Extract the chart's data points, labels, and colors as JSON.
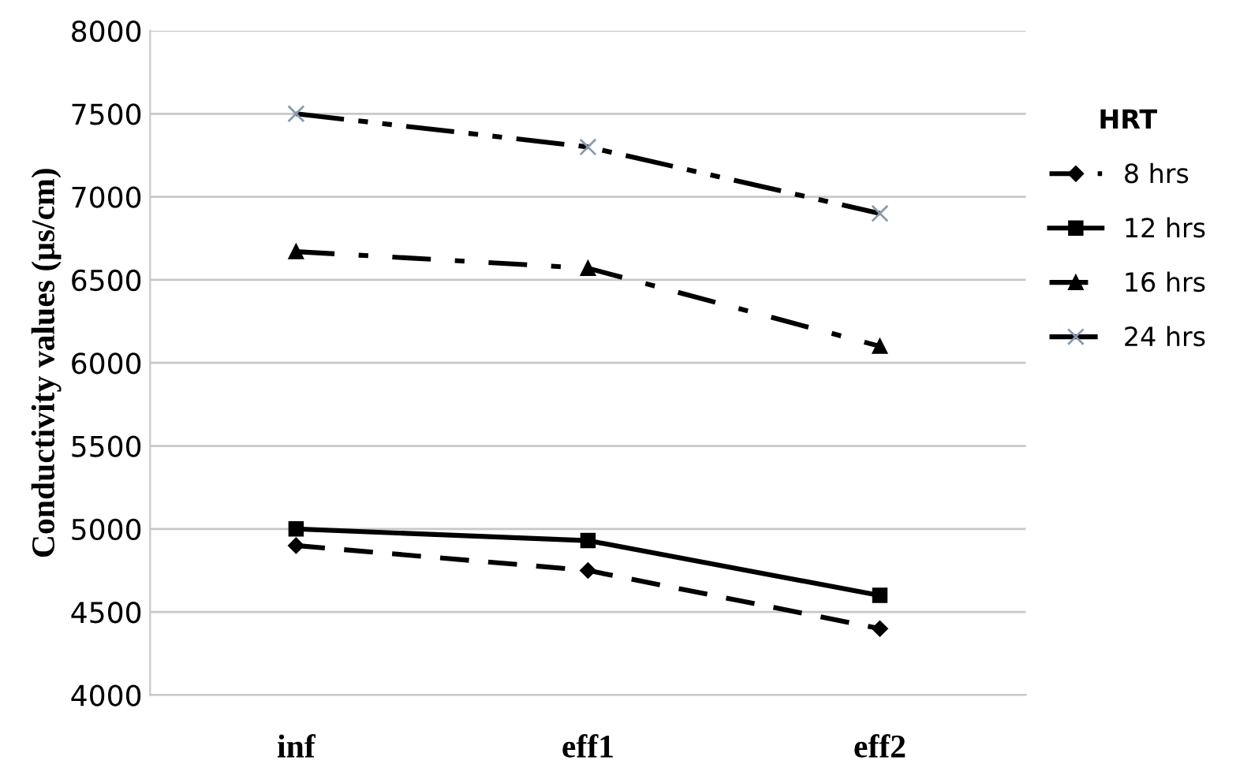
{
  "chart_data": {
    "type": "line",
    "ylabel": "Conductivity values (μs/cm)",
    "legend_title": "HRT",
    "legend": "right",
    "categories": [
      "inf",
      "eff1",
      "eff2"
    ],
    "series": [
      {
        "name": "8 hrs",
        "color": "#000000",
        "values": [
          4900,
          4750,
          4400
        ],
        "marker": "diamond",
        "line_style": "dashed"
      },
      {
        "name": "12 hrs",
        "color": "#000000",
        "values": [
          5000,
          4930,
          4600
        ],
        "marker": "square",
        "line_style": "solid"
      },
      {
        "name": "16 hrs",
        "color": "#000000",
        "values": [
          6670,
          6570,
          6100
        ],
        "marker": "triangle",
        "line_style": "dashdot"
      },
      {
        "name": "24 hrs",
        "color": "#000000",
        "values": [
          7500,
          7300,
          6900
        ],
        "marker": "cross",
        "line_style": "dashdotdot"
      }
    ],
    "ylim": [
      4000,
      8000
    ],
    "yticks": [
      4000,
      4500,
      5000,
      5500,
      6000,
      6500,
      7000,
      7500,
      8000
    ],
    "grid": "y"
  }
}
